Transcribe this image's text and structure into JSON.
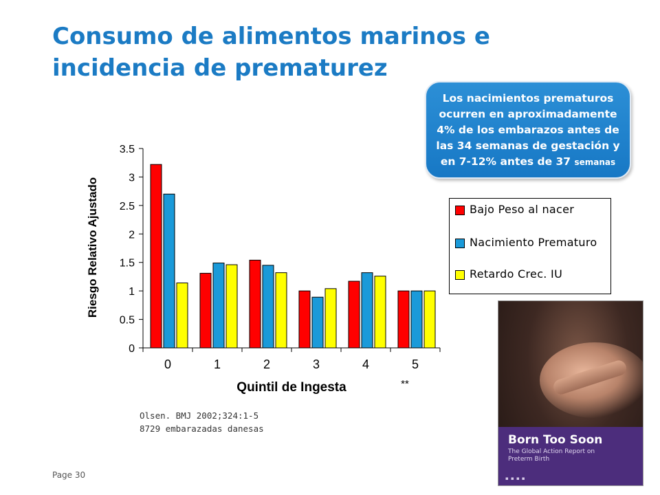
{
  "slide": {
    "title": "Consumo de alimentos marinos e incidencia de prematurez",
    "callout": {
      "line1": "Los nacimientos prematuros",
      "line2": "ocurren en aproximadamente",
      "line3": "4% de los embarazos antes de",
      "line4": "las 34 semanas de gestación y",
      "line5": "en 7-12%  antes de 37",
      "line5_small": "semanas"
    },
    "reference": {
      "line1": "Olsen. BMJ 2002;324:1-5",
      "line2": "8729 embarazadas danesas"
    },
    "page_number": "Page 30",
    "report_cover": {
      "title": "Born Too Soon",
      "subtitle": "The Global Action Report on Preterm Birth"
    }
  },
  "chart_data": {
    "type": "bar",
    "xlabel": "Quintil de Ingesta",
    "ylabel": "Riesgo Relativo Ajustado",
    "ylim": [
      0,
      3.5
    ],
    "yticks": [
      "0",
      "0.5",
      "1",
      "1.5",
      "2",
      "2.5",
      "3",
      "3.5"
    ],
    "ytick_values": [
      0,
      0.5,
      1,
      1.5,
      2,
      2.5,
      3,
      3.5
    ],
    "categories": [
      "0",
      "1",
      "2",
      "3",
      "4",
      "5"
    ],
    "annotation": "**",
    "legend_position": "right",
    "series": [
      {
        "name": "Bajo Peso al nacer",
        "color": "#ff0000",
        "values": [
          3.22,
          1.31,
          1.54,
          1.0,
          1.17,
          1.0
        ]
      },
      {
        "name": "Nacimiento Prematuro",
        "color": "#1a9ad9",
        "values": [
          2.7,
          1.49,
          1.45,
          0.89,
          1.32,
          1.0
        ]
      },
      {
        "name": "Retardo Crec. IU",
        "color": "#ffff00",
        "values": [
          1.14,
          1.46,
          1.32,
          1.04,
          1.26,
          1.0
        ]
      }
    ]
  }
}
